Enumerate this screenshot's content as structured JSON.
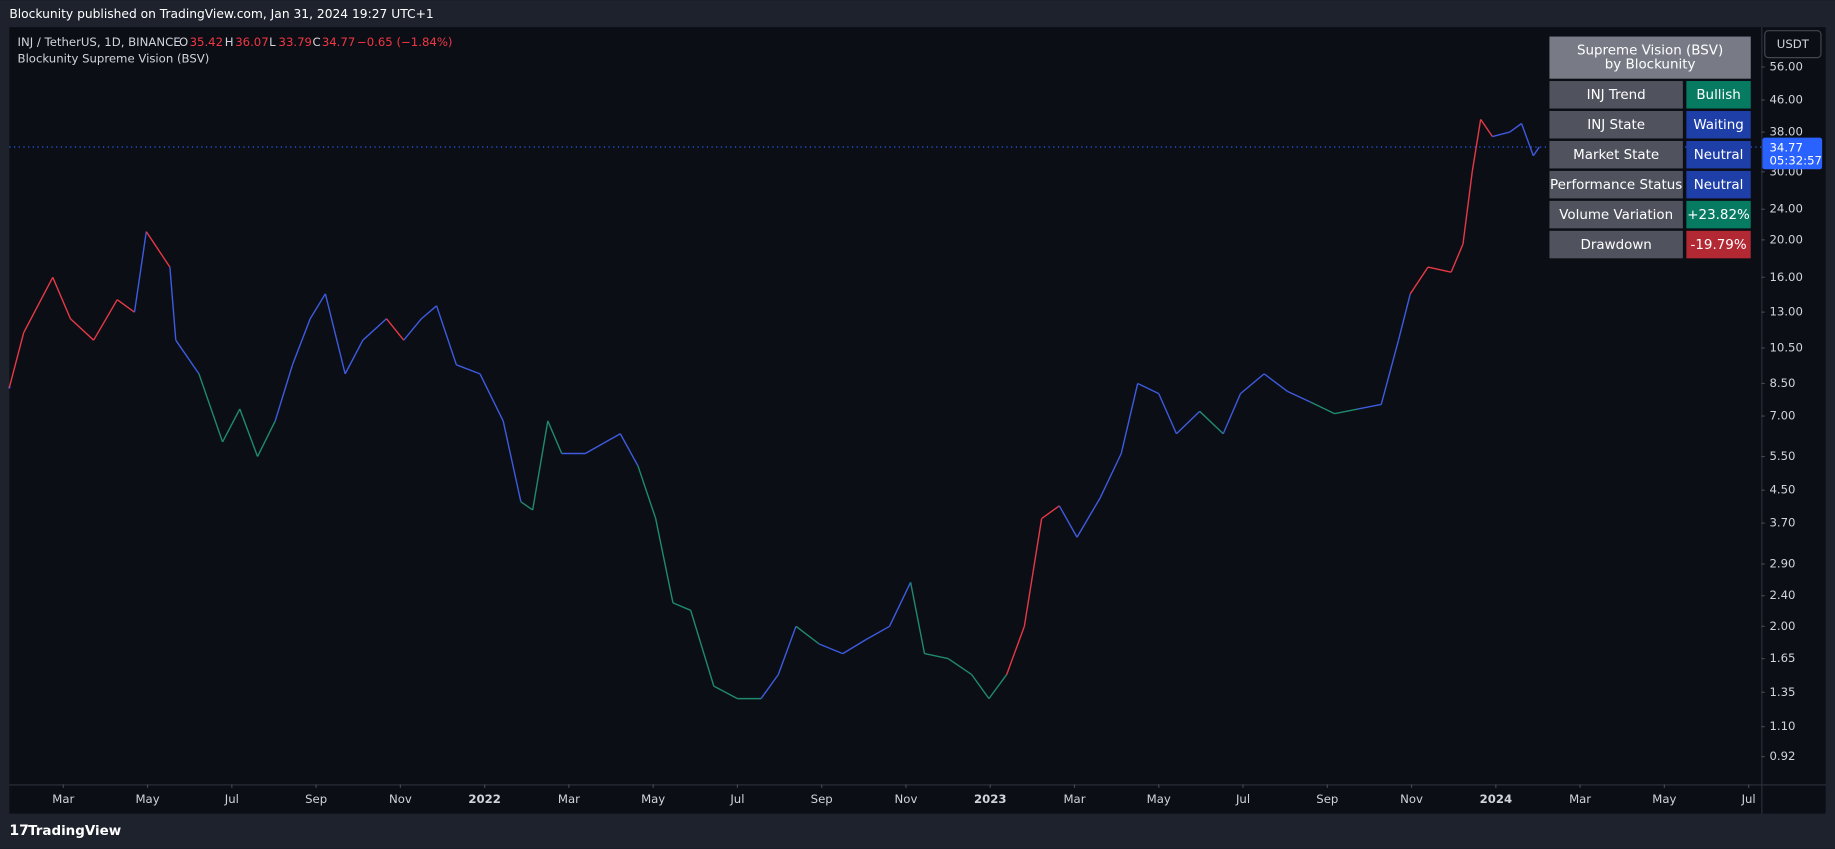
{
  "header": {
    "published": "Blockunity published on TradingView.com, Jan 31, 2024 19:27 UTC+1"
  },
  "legend": {
    "symbol": "INJ / TetherUS, 1D, BINANCE",
    "open_label": "O",
    "open": 35.42,
    "high_label": "H",
    "high": 36.07,
    "low_label": "L",
    "low": 33.79,
    "close_label": "C",
    "close": 34.77,
    "change": "−0.65 (−1.84%)",
    "indicator": "Blockunity Supreme Vision (BSV)"
  },
  "table": {
    "title": [
      "Supreme Vision (BSV)",
      "by Blockunity"
    ],
    "rows": [
      [
        "INJ Trend",
        "Bullish"
      ],
      [
        "INJ State",
        "Waiting"
      ],
      [
        "Market State",
        "Neutral"
      ],
      [
        "Performance Status",
        "Neutral"
      ],
      [
        "Volume Variation",
        "+23.82%"
      ],
      [
        "Drawdown",
        "-19.79%"
      ]
    ],
    "value_colors": [
      "#077a62",
      "#1f3fa8",
      "#1f3fa8",
      "#1f3fa8",
      "#077a62",
      "#b22833"
    ]
  },
  "currency": "USDT",
  "price_tag": {
    "price": 34.77,
    "countdown": "05:32:57"
  },
  "footer": {
    "brand": "TradingView"
  },
  "chart_data": {
    "type": "line",
    "log_scale": true,
    "x": [
      0.72,
      1.06,
      1.75,
      2.17,
      2.72,
      3.28,
      3.69,
      3.97,
      4.53,
      4.67,
      5.22,
      5.78,
      6.19,
      6.61,
      7.03,
      7.44,
      7.86,
      8.22,
      8.69,
      9.11,
      9.67,
      10.08,
      10.5,
      10.86,
      11.33,
      11.89,
      12.44,
      12.86,
      13.14,
      13.5,
      13.83,
      14.39,
      15.22,
      15.64,
      16.06,
      16.47,
      16.89,
      17.44,
      18,
      18.56,
      18.97,
      19.39,
      19.94,
      20.5,
      21.06,
      21.61,
      22.11,
      22.44,
      23,
      23.56,
      23.97,
      24.39,
      24.81,
      25.22,
      25.64,
      26.06,
      26.61,
      27.11,
      27.5,
      28,
      28.42,
      28.97,
      29.53,
      29.94,
      30.5,
      31.06,
      31.61,
      32.17,
      32.72,
      33.28,
      33.69,
      33.97,
      34.39,
      34.94,
      35.22,
      35.44,
      35.64,
      35.92,
      36.33,
      36.61,
      36.89,
      37.03
    ],
    "values": [
      8.3,
      11.5,
      16,
      12.5,
      11,
      14,
      13,
      21,
      17,
      11,
      9,
      6,
      7.3,
      5.5,
      6.8,
      9.5,
      12.5,
      14.5,
      9,
      11,
      12.5,
      11,
      12.5,
      13.5,
      9.5,
      9,
      6.8,
      4.2,
      4,
      6.8,
      5.6,
      5.6,
      6.3,
      5.2,
      3.8,
      2.3,
      2.2,
      1.4,
      1.3,
      1.3,
      1.5,
      2,
      1.8,
      1.7,
      1.85,
      2,
      2.6,
      1.7,
      1.65,
      1.5,
      1.3,
      1.5,
      2,
      3.8,
      4.1,
      3.4,
      4.3,
      5.6,
      8.5,
      8,
      6.3,
      7.2,
      6.3,
      8,
      9,
      8.1,
      7.6,
      7.1,
      7.3,
      7.5,
      11,
      14.5,
      17,
      16.5,
      19.5,
      30,
      41,
      37,
      38,
      40,
      33,
      34.77
    ],
    "colors": [
      "#3d5be0",
      "#e53946",
      "#e53946",
      "#e53946",
      "#e53946",
      "#e53946",
      "#e53946",
      "#3d5be0",
      "#e53946",
      "#3d5be0",
      "#3d5be0",
      "#1f8a70",
      "#1f8a70",
      "#1f8a70",
      "#1f8a70",
      "#3d5be0",
      "#3d5be0",
      "#3d5be0",
      "#3d5be0",
      "#3d5be0",
      "#3d5be0",
      "#e53946",
      "#3d5be0",
      "#3d5be0",
      "#3d5be0",
      "#3d5be0",
      "#3d5be0",
      "#3d5be0",
      "#1f8a70",
      "#1f8a70",
      "#1f8a70",
      "#3d5be0",
      "#3d5be0",
      "#3d5be0",
      "#1f8a70",
      "#1f8a70",
      "#1f8a70",
      "#1f8a70",
      "#1f8a70",
      "#1f8a70",
      "#3d5be0",
      "#3d5be0",
      "#1f8a70",
      "#3d5be0",
      "#3d5be0",
      "#3d5be0",
      "#3d5be0",
      "#1f8a70",
      "#1f8a70",
      "#1f8a70",
      "#1f8a70",
      "#1f8a70",
      "#e53946",
      "#e53946",
      "#e53946",
      "#3d5be0",
      "#3d5be0",
      "#3d5be0",
      "#3d5be0",
      "#3d5be0",
      "#3d5be0",
      "#3d5be0",
      "#1f8a70",
      "#3d5be0",
      "#3d5be0",
      "#3d5be0",
      "#3d5be0",
      "#1f8a70",
      "#1f8a70",
      "#3d5be0",
      "#3d5be0",
      "#3d5be0",
      "#e53946",
      "#e53946",
      "#e53946",
      "#e53946",
      "#e53946",
      "#e53946",
      "#3d5be0",
      "#3d5be0",
      "#3d5be0",
      "#3d5be0"
    ],
    "xlim": [
      0.72,
      42.3
    ],
    "ylim": [
      0.78,
      71
    ],
    "xticks": [
      {
        "value": 2,
        "label": "Mar"
      },
      {
        "value": 4,
        "label": "May"
      },
      {
        "value": 6,
        "label": "Jul"
      },
      {
        "value": 8,
        "label": "Sep"
      },
      {
        "value": 10,
        "label": "Nov"
      },
      {
        "value": 12,
        "label": "2022"
      },
      {
        "value": 14,
        "label": "Mar"
      },
      {
        "value": 16,
        "label": "May"
      },
      {
        "value": 18,
        "label": "Jul"
      },
      {
        "value": 20,
        "label": "Sep"
      },
      {
        "value": 22,
        "label": "Nov"
      },
      {
        "value": 24,
        "label": "2023"
      },
      {
        "value": 26,
        "label": "Mar"
      },
      {
        "value": 28,
        "label": "May"
      },
      {
        "value": 30,
        "label": "Jul"
      },
      {
        "value": 32,
        "label": "Sep"
      },
      {
        "value": 34,
        "label": "Nov"
      },
      {
        "value": 36,
        "label": "2024"
      },
      {
        "value": 38,
        "label": "Mar"
      },
      {
        "value": 40,
        "label": "May"
      },
      {
        "value": 42,
        "label": "Jul"
      }
    ],
    "yticks": [
      {
        "value": 56,
        "label": "56.00"
      },
      {
        "value": 46,
        "label": "46.00"
      },
      {
        "value": 38,
        "label": "38.00"
      },
      {
        "value": 30,
        "label": "30.00"
      },
      {
        "value": 24,
        "label": "24.00"
      },
      {
        "value": 20,
        "label": "20.00"
      },
      {
        "value": 16,
        "label": "16.00"
      },
      {
        "value": 13,
        "label": "13.00"
      },
      {
        "value": 10.5,
        "label": "10.50"
      },
      {
        "value": 8.5,
        "label": "8.50"
      },
      {
        "value": 7,
        "label": "7.00"
      },
      {
        "value": 5.5,
        "label": "5.50"
      },
      {
        "value": 4.5,
        "label": "4.50"
      },
      {
        "value": 3.7,
        "label": "3.70"
      },
      {
        "value": 2.9,
        "label": "2.90"
      },
      {
        "value": 2.4,
        "label": "2.40"
      },
      {
        "value": 2,
        "label": "2.00"
      },
      {
        "value": 1.65,
        "label": "1.65"
      },
      {
        "value": 1.35,
        "label": "1.35"
      },
      {
        "value": 1.1,
        "label": "1.10"
      },
      {
        "value": 0.92,
        "label": "0.92"
      }
    ]
  }
}
